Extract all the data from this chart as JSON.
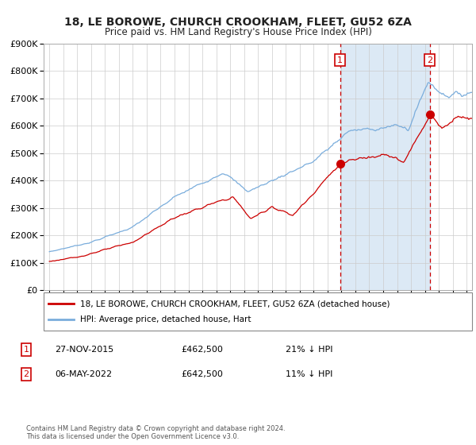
{
  "title": "18, LE BOROWE, CHURCH CROOKHAM, FLEET, GU52 6ZA",
  "subtitle": "Price paid vs. HM Land Registry's House Price Index (HPI)",
  "legend_line1": "18, LE BOROWE, CHURCH CROOKHAM, FLEET, GU52 6ZA (detached house)",
  "legend_line2": "HPI: Average price, detached house, Hart",
  "annotation1_label": "1",
  "annotation1_date": "27-NOV-2015",
  "annotation1_price": "£462,500",
  "annotation1_pct": "21% ↓ HPI",
  "annotation2_label": "2",
  "annotation2_date": "06-MAY-2022",
  "annotation2_price": "£642,500",
  "annotation2_pct": "11% ↓ HPI",
  "marker1_x": 2015.9,
  "marker1_y": 462500,
  "marker2_x": 2022.35,
  "marker2_y": 642500,
  "vline1_x": 2015.9,
  "vline2_x": 2022.35,
  "ylim": [
    0,
    900000
  ],
  "xlim_start": 1994.6,
  "xlim_end": 2025.4,
  "red_color": "#cc0000",
  "blue_color": "#7aaddc",
  "shade_color": "#dce9f5",
  "plot_bg": "#ffffff",
  "grid_color": "#cccccc",
  "footer": "Contains HM Land Registry data © Crown copyright and database right 2024.\nThis data is licensed under the Open Government Licence v3.0."
}
